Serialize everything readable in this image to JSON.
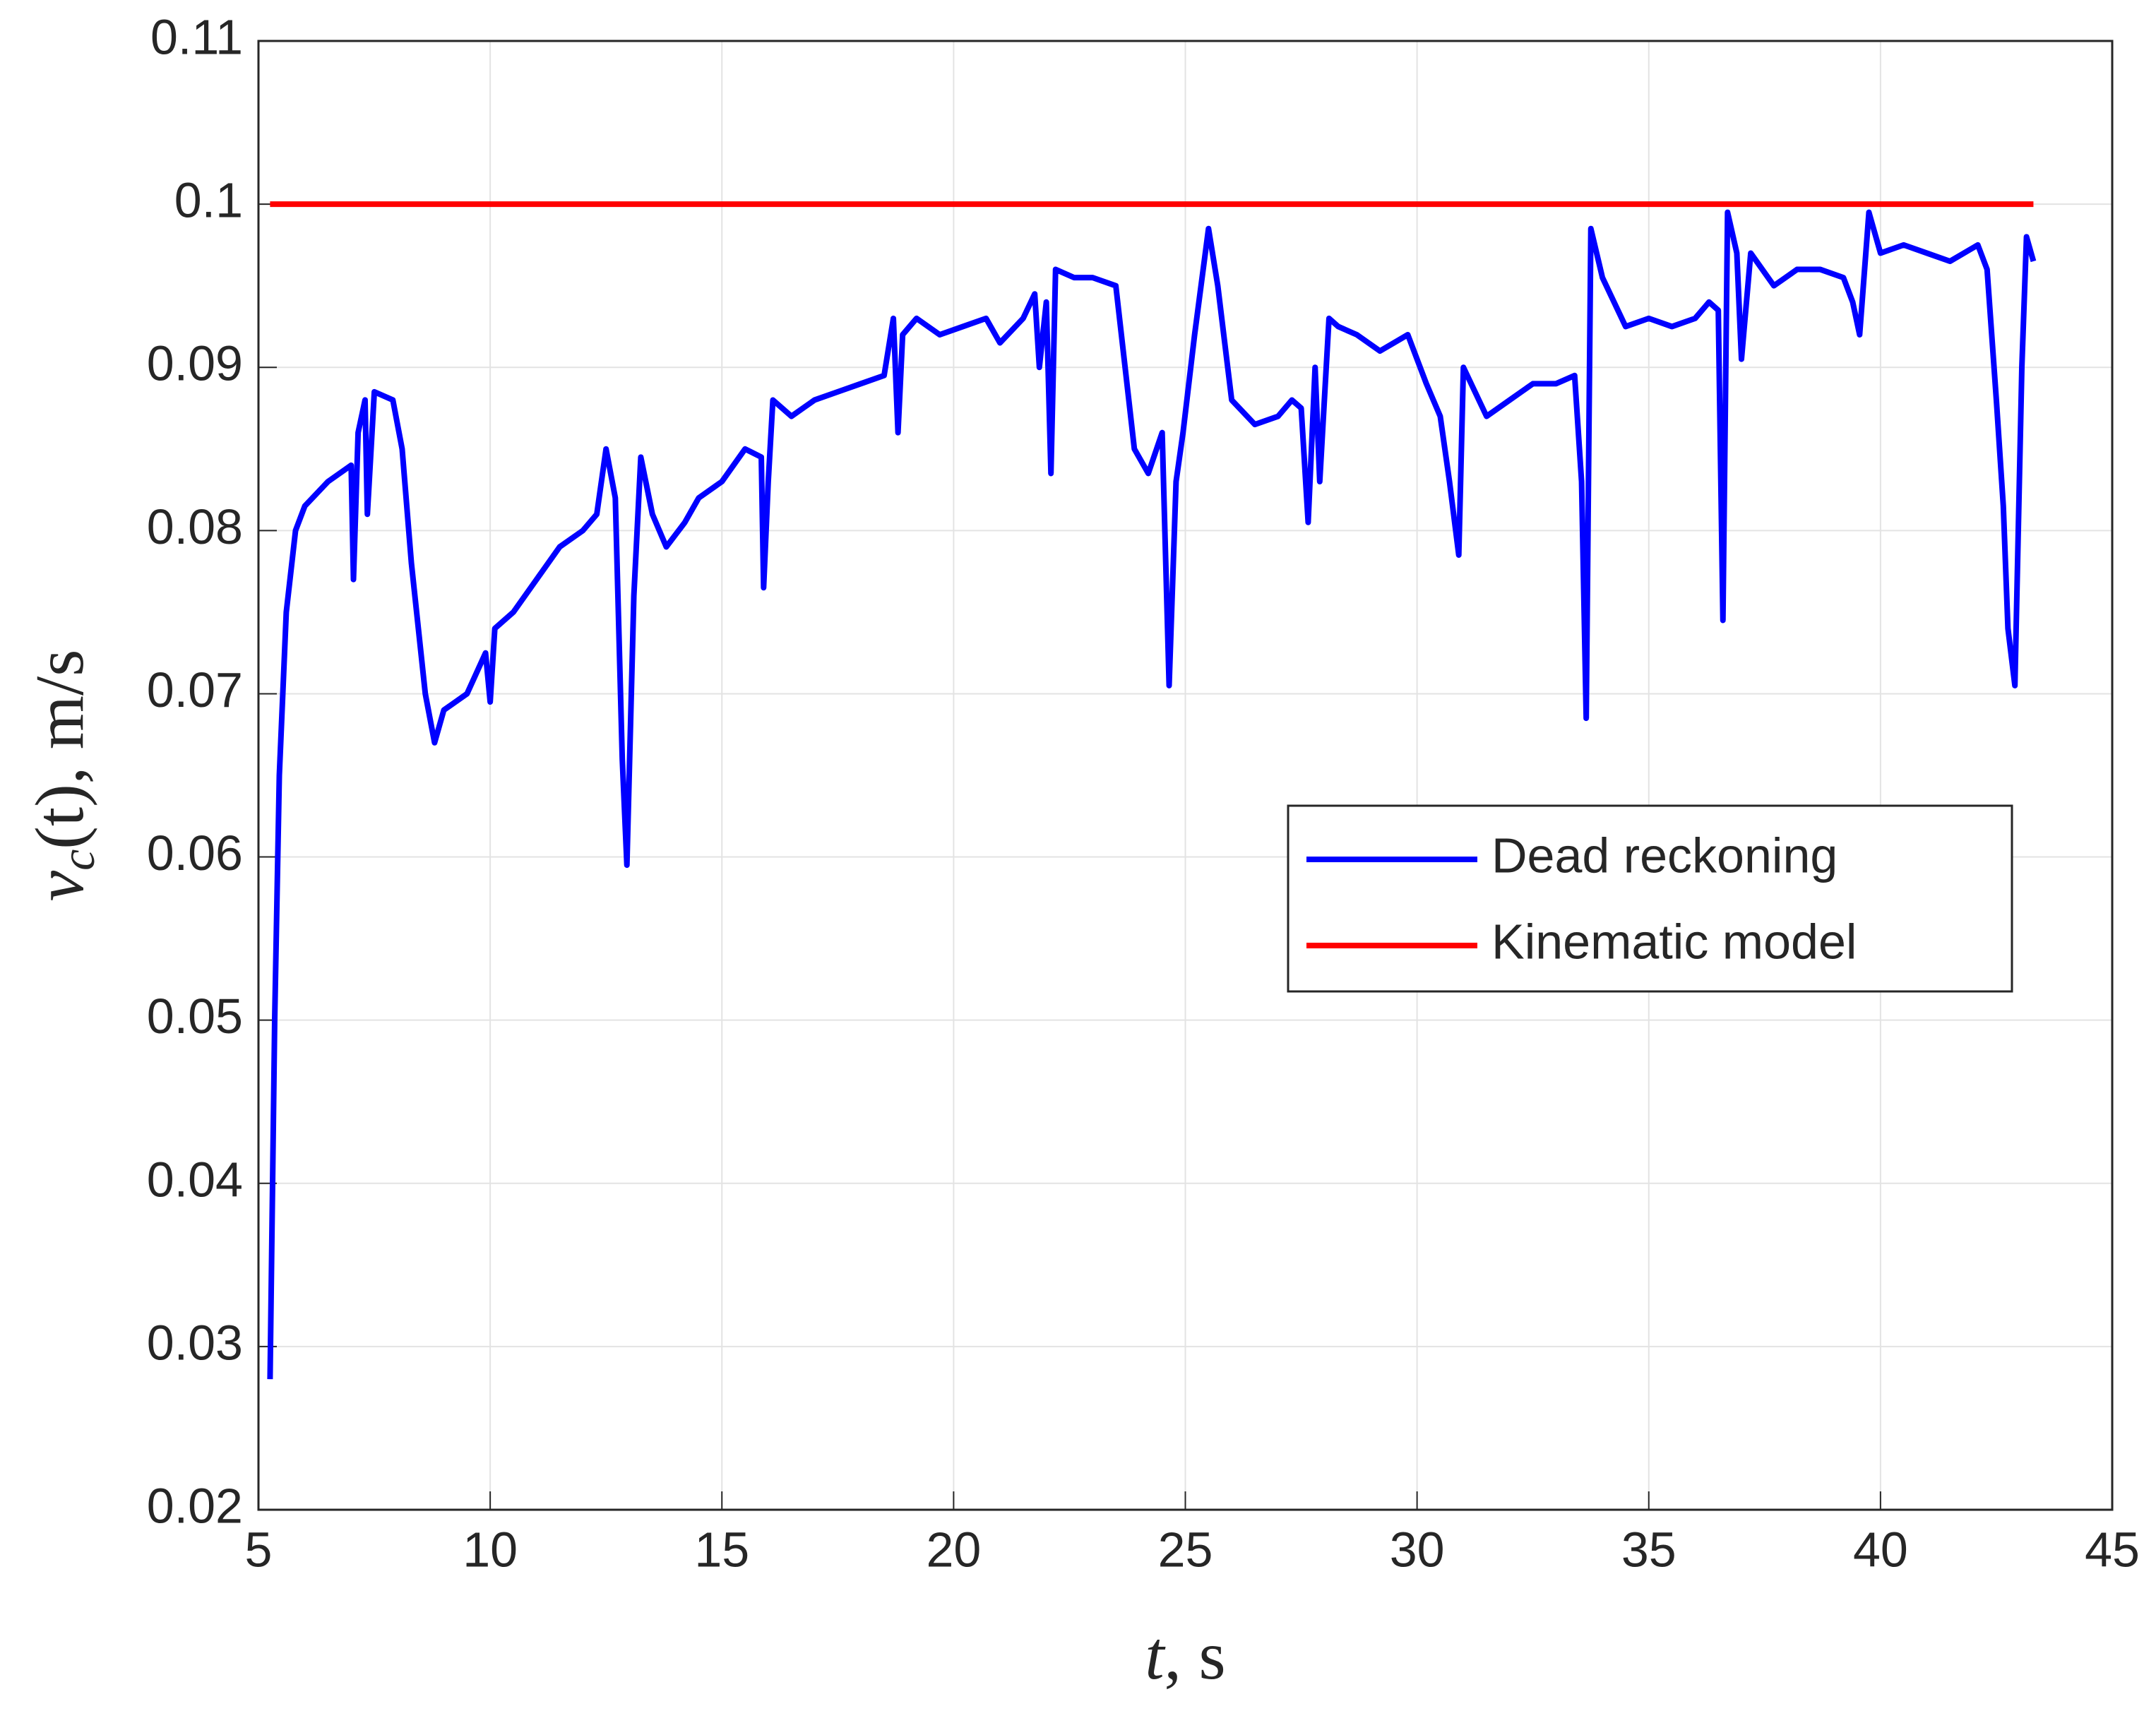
{
  "chart_data": {
    "type": "line",
    "xlabel": [
      "t",
      ", s"
    ],
    "ylabel": [
      "v",
      "c",
      "(t), m/s"
    ],
    "xlim": [
      5,
      45
    ],
    "xticks": [
      5,
      10,
      15,
      20,
      25,
      30,
      35,
      40,
      45
    ],
    "ylim": [
      0.02,
      0.11
    ],
    "yticks": [
      0.02,
      0.03,
      0.04,
      0.05,
      0.06,
      0.07,
      0.08,
      0.09,
      0.1,
      0.11
    ],
    "grid": true,
    "legend": "right",
    "series": [
      {
        "name": "Dead reckoning",
        "color": "#0000ff",
        "x": [
          5.25,
          5.35,
          5.45,
          5.6,
          5.8,
          6.0,
          6.5,
          7.0,
          7.05,
          7.15,
          7.3,
          7.35,
          7.5,
          7.9,
          8.1,
          8.3,
          8.6,
          8.8,
          9.0,
          9.5,
          9.9,
          10.0,
          10.1,
          10.5,
          11,
          11.5,
          12,
          12.3,
          12.5,
          12.7,
          12.85,
          12.95,
          13.1,
          13.25,
          13.5,
          13.8,
          14.2,
          14.5,
          15,
          15.5,
          15.85,
          15.9,
          16.0,
          16.1,
          16.5,
          17,
          17.5,
          18,
          18.5,
          18.7,
          18.8,
          18.9,
          19.2,
          19.7,
          20.2,
          20.7,
          21,
          21.5,
          21.75,
          21.85,
          22.0,
          22.1,
          22.2,
          22.6,
          23,
          23.5,
          23.7,
          23.9,
          24.2,
          24.5,
          24.65,
          24.8,
          24.95,
          25.2,
          25.5,
          25.7,
          26.0,
          26.5,
          27,
          27.3,
          27.5,
          27.65,
          27.8,
          27.9,
          28.1,
          28.3,
          28.7,
          29.2,
          29.8,
          30.2,
          30.5,
          30.7,
          30.9,
          31,
          31.5,
          32,
          32.5,
          33,
          33.4,
          33.55,
          33.65,
          33.75,
          34,
          34.5,
          35,
          35.5,
          36,
          36.3,
          36.5,
          36.6,
          36.7,
          36.9,
          37,
          37.2,
          37.7,
          38.2,
          38.7,
          39.2,
          39.4,
          39.55,
          39.75,
          40,
          40.5,
          41,
          41.5,
          42.1,
          42.3,
          42.5,
          42.65,
          42.75,
          42.9,
          43.05,
          43.15,
          43.3
        ],
        "values": [
          0.028,
          0.05,
          0.065,
          0.075,
          0.08,
          0.0815,
          0.083,
          0.084,
          0.077,
          0.086,
          0.088,
          0.081,
          0.0885,
          0.088,
          0.085,
          0.078,
          0.07,
          0.067,
          0.069,
          0.07,
          0.0725,
          0.0695,
          0.074,
          0.075,
          0.077,
          0.079,
          0.08,
          0.081,
          0.085,
          0.082,
          0.066,
          0.0595,
          0.076,
          0.0845,
          0.081,
          0.079,
          0.0805,
          0.082,
          0.083,
          0.085,
          0.0845,
          0.0765,
          0.083,
          0.088,
          0.087,
          0.088,
          0.0885,
          0.089,
          0.0895,
          0.093,
          0.086,
          0.092,
          0.093,
          0.092,
          0.0925,
          0.093,
          0.0915,
          0.093,
          0.0945,
          0.09,
          0.094,
          0.0835,
          0.096,
          0.0955,
          0.0955,
          0.095,
          0.09,
          0.085,
          0.0835,
          0.086,
          0.0705,
          0.083,
          0.086,
          0.092,
          0.0985,
          0.095,
          0.088,
          0.0865,
          0.087,
          0.088,
          0.0875,
          0.0805,
          0.09,
          0.083,
          0.093,
          0.0925,
          0.092,
          0.091,
          0.092,
          0.089,
          0.087,
          0.083,
          0.0785,
          0.09,
          0.087,
          0.088,
          0.089,
          0.089,
          0.0895,
          0.083,
          0.0685,
          0.0985,
          0.0955,
          0.0925,
          0.093,
          0.0925,
          0.093,
          0.094,
          0.0935,
          0.0745,
          0.0995,
          0.097,
          0.0905,
          0.097,
          0.095,
          0.096,
          0.096,
          0.0955,
          0.094,
          0.092,
          0.0995,
          0.097,
          0.0975,
          0.097,
          0.0965,
          0.0975,
          0.096,
          0.088,
          0.0815,
          0.074,
          0.0705,
          0.09,
          0.098,
          0.0965
        ]
      },
      {
        "name": "Kinematic model",
        "color": "#ff0000",
        "x": [
          5.25,
          43.3
        ],
        "values": [
          0.1,
          0.1
        ]
      }
    ]
  }
}
